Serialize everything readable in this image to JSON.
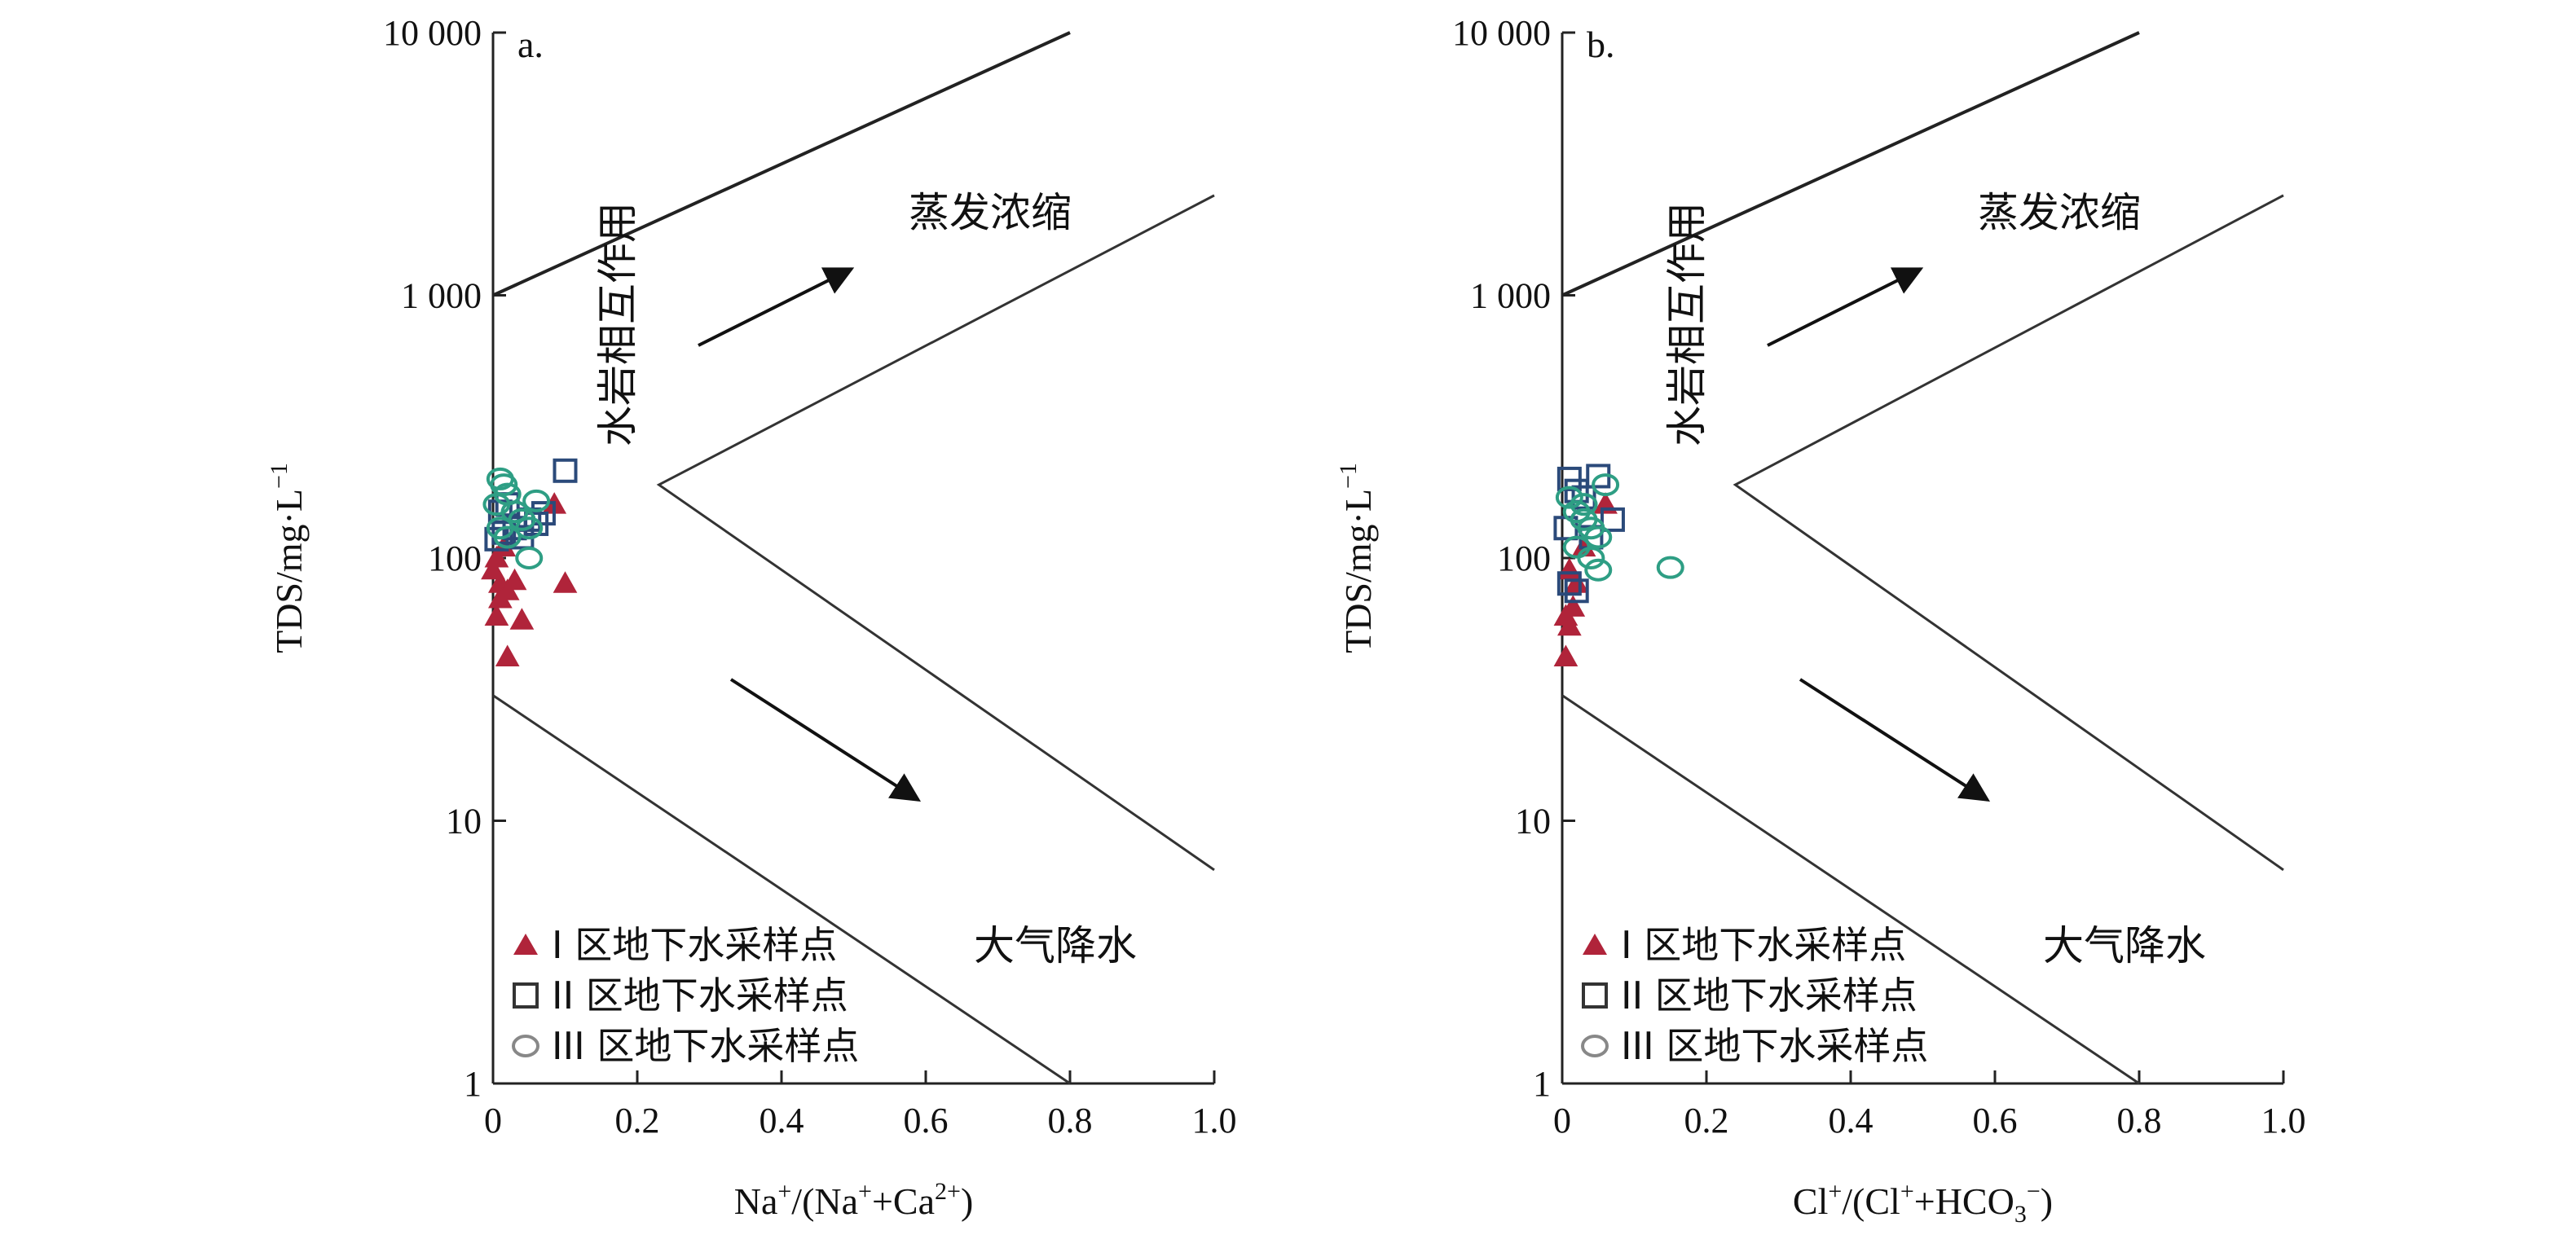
{
  "chart_data": [
    {
      "type": "scatter",
      "panel_label": "a.",
      "xlabel_base": "Na",
      "xlabel_sup1": "+",
      "xlabel_mid": "/(Na",
      "xlabel_sup2": "+",
      "xlabel_mid2": "+Ca",
      "xlabel_sup3": "2+",
      "xlabel_end": ")",
      "ylabel_main": "TDS/mg·L",
      "ylabel_sup": "−1",
      "xlim": [
        0,
        1.0
      ],
      "ylim": [
        1,
        10000
      ],
      "y_scale": "log",
      "x_ticks": [
        0,
        0.2,
        0.4,
        0.6,
        0.8,
        1.0
      ],
      "x_tick_labels": [
        "0",
        "0.2",
        "0.4",
        "0.6",
        "0.8",
        "1.0"
      ],
      "y_ticks": [
        1,
        10,
        100,
        1000,
        10000
      ],
      "y_tick_labels": [
        "1",
        "10",
        "100",
        "1 000",
        "10 000"
      ],
      "boundaries": {
        "upper_thick": [
          [
            0,
            1000
          ],
          [
            0.8,
            10000
          ]
        ],
        "middle": [
          [
            0.23,
            190
          ],
          [
            1.0,
            2400
          ],
          [
            0.23,
            190
          ],
          [
            1.0,
            6.5
          ]
        ],
        "lower": [
          [
            0,
            30
          ],
          [
            0.8,
            1
          ]
        ]
      },
      "annotations": {
        "evaporation": "蒸发浓缩",
        "rock_weathering": "水岩相互作用",
        "precipitation": "大气降水"
      },
      "legend_position": "bottom-left",
      "series": [
        {
          "name": "I 区地下水采样点",
          "marker": "triangle",
          "color": "#b0243a",
          "points": [
            [
              0.0,
              90
            ],
            [
              0.01,
              80
            ],
            [
              0.01,
              70
            ],
            [
              0.005,
              60
            ],
            [
              0.02,
              75
            ],
            [
              0.03,
              82
            ],
            [
              0.02,
              42
            ],
            [
              0.04,
              58
            ],
            [
              0.1,
              80
            ],
            [
              0.085,
              160
            ],
            [
              0.005,
              100
            ],
            [
              0.015,
              110
            ]
          ]
        },
        {
          "name": "II 区地下水采样点",
          "marker": "square",
          "color": "#2b4a7a",
          "points": [
            [
              0.01,
              150
            ],
            [
              0.02,
              160
            ],
            [
              0.03,
              130
            ],
            [
              0.04,
              120
            ],
            [
              0.05,
              140
            ],
            [
              0.06,
              135
            ],
            [
              0.07,
              148
            ],
            [
              0.1,
              215
            ],
            [
              0.015,
              125
            ],
            [
              0.005,
              118
            ]
          ]
        },
        {
          "name": "III 区地下水采样点",
          "marker": "circle",
          "color": "#2e9e84",
          "points": [
            [
              0.01,
              200
            ],
            [
              0.015,
              190
            ],
            [
              0.02,
              175
            ],
            [
              0.005,
              160
            ],
            [
              0.03,
              150
            ],
            [
              0.04,
              140
            ],
            [
              0.05,
              130
            ],
            [
              0.06,
              165
            ],
            [
              0.05,
              100
            ],
            [
              0.01,
              130
            ],
            [
              0.02,
              120
            ]
          ]
        }
      ]
    },
    {
      "type": "scatter",
      "panel_label": "b.",
      "xlabel_base": "Cl",
      "xlabel_sup1": "+",
      "xlabel_mid": "/(Cl",
      "xlabel_sup2": "+",
      "xlabel_mid2": "+HCO",
      "xlabel_sub3": "3",
      "xlabel_sup3": "−",
      "xlabel_end": ")",
      "ylabel_main": "TDS/mg·L",
      "ylabel_sup": "−1",
      "xlim": [
        0,
        1.0
      ],
      "ylim": [
        1,
        10000
      ],
      "y_scale": "log",
      "x_ticks": [
        0,
        0.2,
        0.4,
        0.6,
        0.8,
        1.0
      ],
      "x_tick_labels": [
        "0",
        "0.2",
        "0.4",
        "0.6",
        "0.8",
        "1.0"
      ],
      "y_ticks": [
        1,
        10,
        100,
        1000,
        10000
      ],
      "y_tick_labels": [
        "1",
        "10",
        "100",
        "1 000",
        "10 000"
      ],
      "boundaries": {
        "upper_thick": [
          [
            0,
            1000
          ],
          [
            0.8,
            10000
          ]
        ],
        "middle": [
          [
            0.24,
            190
          ],
          [
            1.0,
            2400
          ],
          [
            0.24,
            190
          ],
          [
            1.0,
            6.5
          ]
        ],
        "lower": [
          [
            0,
            30
          ],
          [
            0.8,
            1
          ]
        ]
      },
      "annotations": {
        "evaporation": "蒸发浓缩",
        "rock_weathering": "水岩相互作用",
        "precipitation": "大气降水"
      },
      "legend_position": "bottom-left",
      "series": [
        {
          "name": "I 区地下水采样点",
          "marker": "triangle",
          "color": "#b0243a",
          "points": [
            [
              0.005,
              60
            ],
            [
              0.01,
              55
            ],
            [
              0.015,
              65
            ],
            [
              0.005,
              42
            ],
            [
              0.02,
              80
            ],
            [
              0.03,
              110
            ],
            [
              0.06,
              160
            ],
            [
              0.01,
              90
            ]
          ]
        },
        {
          "name": "II 区地下水采样点",
          "marker": "square",
          "color": "#2b4a7a",
          "points": [
            [
              0.01,
              200
            ],
            [
              0.02,
              180
            ],
            [
              0.03,
              170
            ],
            [
              0.05,
              205
            ],
            [
              0.07,
              140
            ],
            [
              0.04,
              120
            ],
            [
              0.01,
              80
            ],
            [
              0.02,
              75
            ],
            [
              0.005,
              130
            ]
          ]
        },
        {
          "name": "III 区地下水采样点",
          "marker": "circle",
          "color": "#2e9e84",
          "points": [
            [
              0.01,
              170
            ],
            [
              0.02,
              150
            ],
            [
              0.03,
              140
            ],
            [
              0.04,
              130
            ],
            [
              0.05,
              120
            ],
            [
              0.06,
              190
            ],
            [
              0.04,
              100
            ],
            [
              0.05,
              90
            ],
            [
              0.02,
              110
            ],
            [
              0.15,
              92
            ],
            [
              0.03,
              160
            ]
          ]
        }
      ]
    }
  ]
}
